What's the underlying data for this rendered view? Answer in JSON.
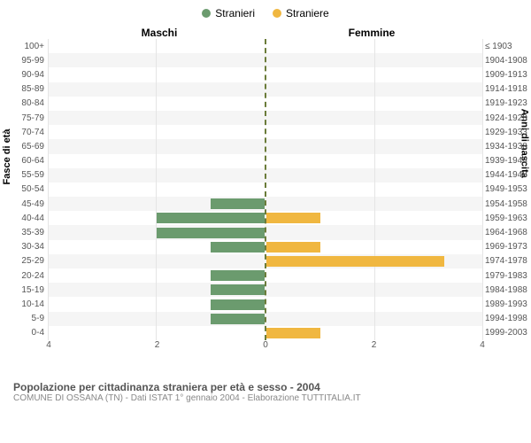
{
  "legend": [
    {
      "label": "Stranieri",
      "color": "#6b9b6e"
    },
    {
      "label": "Straniere",
      "color": "#f0b740"
    }
  ],
  "header_left": "Maschi",
  "header_right": "Femmine",
  "axis_left_title": "Fasce di età",
  "axis_right_title": "Anni di nascita",
  "x_max": 4,
  "x_ticks": [
    0,
    2,
    4
  ],
  "colors": {
    "male": "#6b9b6e",
    "female": "#f0b740",
    "divider": "#6b7c3a",
    "row_alt": "#f5f5f5",
    "grid": "#e5e5e5"
  },
  "rows": [
    {
      "age": "100+",
      "birth": "≤ 1903",
      "m": 0,
      "f": 0
    },
    {
      "age": "95-99",
      "birth": "1904-1908",
      "m": 0,
      "f": 0
    },
    {
      "age": "90-94",
      "birth": "1909-1913",
      "m": 0,
      "f": 0
    },
    {
      "age": "85-89",
      "birth": "1914-1918",
      "m": 0,
      "f": 0
    },
    {
      "age": "80-84",
      "birth": "1919-1923",
      "m": 0,
      "f": 0
    },
    {
      "age": "75-79",
      "birth": "1924-1928",
      "m": 0,
      "f": 0
    },
    {
      "age": "70-74",
      "birth": "1929-1933",
      "m": 0,
      "f": 0
    },
    {
      "age": "65-69",
      "birth": "1934-1938",
      "m": 0,
      "f": 0
    },
    {
      "age": "60-64",
      "birth": "1939-1943",
      "m": 0,
      "f": 0
    },
    {
      "age": "55-59",
      "birth": "1944-1948",
      "m": 0,
      "f": 0
    },
    {
      "age": "50-54",
      "birth": "1949-1953",
      "m": 0,
      "f": 0
    },
    {
      "age": "45-49",
      "birth": "1954-1958",
      "m": 1,
      "f": 0
    },
    {
      "age": "40-44",
      "birth": "1959-1963",
      "m": 2,
      "f": 1
    },
    {
      "age": "35-39",
      "birth": "1964-1968",
      "m": 2,
      "f": 0
    },
    {
      "age": "30-34",
      "birth": "1969-1973",
      "m": 1,
      "f": 1
    },
    {
      "age": "25-29",
      "birth": "1974-1978",
      "m": 0,
      "f": 3.3
    },
    {
      "age": "20-24",
      "birth": "1979-1983",
      "m": 1,
      "f": 0
    },
    {
      "age": "15-19",
      "birth": "1984-1988",
      "m": 1,
      "f": 0
    },
    {
      "age": "10-14",
      "birth": "1989-1993",
      "m": 1,
      "f": 0
    },
    {
      "age": "5-9",
      "birth": "1994-1998",
      "m": 1,
      "f": 0
    },
    {
      "age": "0-4",
      "birth": "1999-2003",
      "m": 0,
      "f": 1
    }
  ],
  "footer": {
    "title": "Popolazione per cittadinanza straniera per età e sesso - 2004",
    "sub": "COMUNE DI OSSANA (TN) - Dati ISTAT 1° gennaio 2004 - Elaborazione TUTTITALIA.IT"
  }
}
